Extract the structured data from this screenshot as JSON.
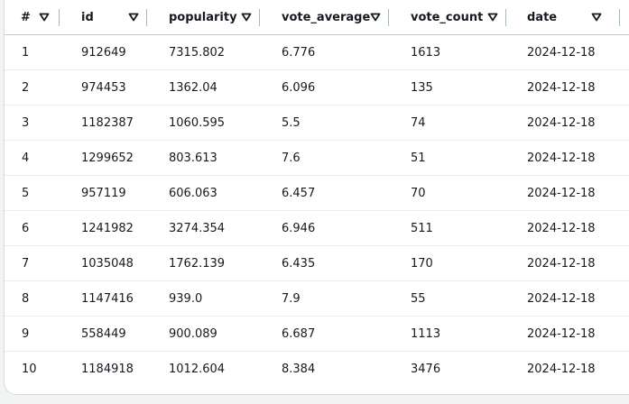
{
  "table": {
    "columns": [
      "#",
      "id",
      "popularity",
      "vote_average",
      "vote_count",
      "date"
    ],
    "rows": [
      [
        "1",
        "912649",
        "7315.802",
        "6.776",
        "1613",
        "2024-12-18"
      ],
      [
        "2",
        "974453",
        "1362.04",
        "6.096",
        "135",
        "2024-12-18"
      ],
      [
        "3",
        "1182387",
        "1060.595",
        "5.5",
        "74",
        "2024-12-18"
      ],
      [
        "4",
        "1299652",
        "803.613",
        "7.6",
        "51",
        "2024-12-18"
      ],
      [
        "5",
        "957119",
        "606.063",
        "6.457",
        "70",
        "2024-12-18"
      ],
      [
        "6",
        "1241982",
        "3274.354",
        "6.946",
        "511",
        "2024-12-18"
      ],
      [
        "7",
        "1035048",
        "1762.139",
        "6.435",
        "170",
        "2024-12-18"
      ],
      [
        "8",
        "1147416",
        "939.0",
        "7.9",
        "55",
        "2024-12-18"
      ],
      [
        "9",
        "558449",
        "900.089",
        "6.687",
        "1113",
        "2024-12-18"
      ],
      [
        "10",
        "1184918",
        "1012.604",
        "8.384",
        "3476",
        "2024-12-18"
      ]
    ],
    "sort_icon": "sort-descending-triangle-icon",
    "colors": {
      "text": "#16191f",
      "row_border": "#e9ebed",
      "header_border": "#c6c9cc",
      "column_divider": "#aab7b8"
    }
  }
}
